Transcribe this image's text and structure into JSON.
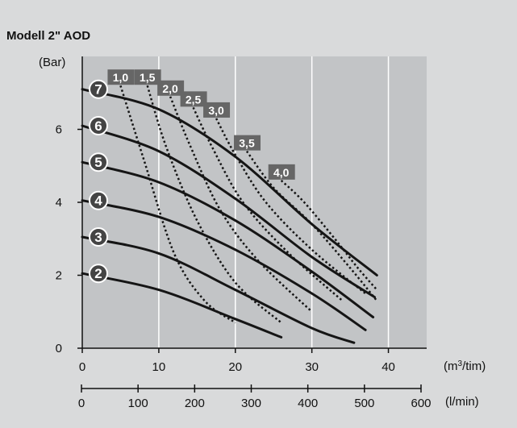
{
  "chart_data": {
    "type": "line",
    "title": "Modell 2\" AOD",
    "y_unit_label": "(Bar)",
    "x_unit_label": "(m³/tim)",
    "x2_unit_label": "(l/min)",
    "xlim": [
      0,
      45
    ],
    "ylim": [
      0,
      8
    ],
    "x_ticks": [
      "0",
      "10",
      "20",
      "30",
      "40"
    ],
    "x2_ticks": [
      "0",
      "100",
      "200",
      "300",
      "400",
      "500",
      "600"
    ],
    "y_ticks": [
      "0",
      "2",
      "4",
      "6"
    ],
    "grid": "vertical",
    "series": [
      {
        "name": "7",
        "points": [
          [
            0,
            7.1
          ],
          [
            10,
            6.55
          ],
          [
            20,
            5.25
          ],
          [
            30,
            3.4
          ],
          [
            38.5,
            2.0
          ]
        ]
      },
      {
        "name": "6",
        "points": [
          [
            0,
            6.1
          ],
          [
            10,
            5.4
          ],
          [
            20,
            4.1
          ],
          [
            30,
            2.5
          ],
          [
            38.2,
            1.4
          ]
        ]
      },
      {
        "name": "5",
        "points": [
          [
            0,
            5.1
          ],
          [
            10,
            4.55
          ],
          [
            20,
            3.5
          ],
          [
            30,
            2.1
          ],
          [
            38,
            0.85
          ]
        ]
      },
      {
        "name": "4",
        "points": [
          [
            0,
            4.05
          ],
          [
            10,
            3.6
          ],
          [
            20,
            2.7
          ],
          [
            30,
            1.5
          ],
          [
            37,
            0.5
          ]
        ]
      },
      {
        "name": "3",
        "points": [
          [
            0,
            3.05
          ],
          [
            10,
            2.6
          ],
          [
            20,
            1.6
          ],
          [
            30,
            0.55
          ],
          [
            35.5,
            0.15
          ]
        ]
      },
      {
        "name": "2",
        "points": [
          [
            0,
            2.05
          ],
          [
            10,
            1.6
          ],
          [
            20,
            0.8
          ],
          [
            26,
            0.3
          ]
        ]
      }
    ],
    "consumption_lines": [
      {
        "label": "1,0",
        "points": [
          [
            5,
            7.2
          ],
          [
            8,
            5.2
          ],
          [
            12,
            2.6
          ],
          [
            16,
            1.3
          ],
          [
            20,
            0.7
          ]
        ]
      },
      {
        "label": "1,5",
        "points": [
          [
            8.5,
            7.2
          ],
          [
            11,
            5.5
          ],
          [
            15,
            3.5
          ],
          [
            20,
            1.8
          ],
          [
            26,
            0.7
          ]
        ]
      },
      {
        "label": "2,0",
        "points": [
          [
            11.5,
            6.9
          ],
          [
            14,
            5.6
          ],
          [
            18,
            3.8
          ],
          [
            23,
            2.4
          ],
          [
            30,
            1.0
          ]
        ]
      },
      {
        "label": "2,5",
        "points": [
          [
            14.5,
            6.6
          ],
          [
            17,
            5.5
          ],
          [
            21,
            4.0
          ],
          [
            27,
            2.6
          ],
          [
            34,
            1.3
          ]
        ]
      },
      {
        "label": "3,0",
        "points": [
          [
            17.5,
            6.3
          ],
          [
            20,
            5.3
          ],
          [
            24,
            4.0
          ],
          [
            30,
            2.7
          ],
          [
            37,
            1.5
          ]
        ]
      },
      {
        "label": "3,5",
        "points": [
          [
            21.5,
            5.4
          ],
          [
            25,
            4.4
          ],
          [
            30,
            3.4
          ],
          [
            35,
            2.2
          ],
          [
            38.5,
            1.3
          ]
        ]
      },
      {
        "label": "4,0",
        "points": [
          [
            26,
            4.6
          ],
          [
            29,
            4.0
          ],
          [
            33,
            3.0
          ],
          [
            36,
            2.2
          ],
          [
            38.5,
            1.6
          ]
        ]
      }
    ],
    "colors": {
      "background": "#d9dadb",
      "plot_area": "#c2c4c6",
      "grid": "#ffffff",
      "curve": "#151515",
      "badge": "#666666",
      "badge_text": "#ffffff"
    }
  }
}
